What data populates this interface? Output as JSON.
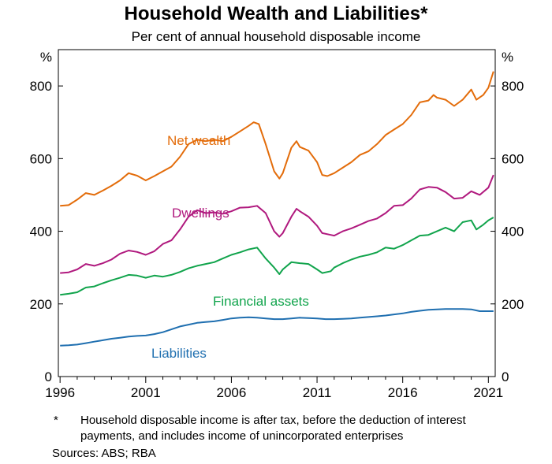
{
  "title": "Household Wealth and Liabilities*",
  "subtitle": "Per cent of annual household disposable income",
  "footnote_marker": "*",
  "footnote": "Household disposable income is after tax, before the deduction of interest payments, and includes income of unincorporated enterprises",
  "sources": "Sources: ABS; RBA",
  "chart_data": {
    "type": "line",
    "y_unit": "%",
    "ylim": [
      0,
      900
    ],
    "xlim": [
      1995.9,
      2021.4
    ],
    "y_ticks": [
      0,
      200,
      400,
      600,
      800
    ],
    "x_ticks": [
      1996,
      2001,
      2006,
      2011,
      2016,
      2021
    ],
    "grid": false,
    "legend": "inline labels",
    "series": [
      {
        "name": "Net wealth",
        "color": "#E36C0A",
        "points": [
          [
            1996,
            470
          ],
          [
            1996.5,
            472
          ],
          [
            1997,
            487
          ],
          [
            1997.5,
            505
          ],
          [
            1998,
            500
          ],
          [
            1998.5,
            512
          ],
          [
            1999,
            525
          ],
          [
            1999.5,
            540
          ],
          [
            2000,
            560
          ],
          [
            2000.5,
            553
          ],
          [
            2001,
            540
          ],
          [
            2001.5,
            552
          ],
          [
            2002,
            565
          ],
          [
            2002.5,
            578
          ],
          [
            2003,
            605
          ],
          [
            2003.5,
            640
          ],
          [
            2004,
            652
          ],
          [
            2004.5,
            648
          ],
          [
            2005,
            652
          ],
          [
            2005.5,
            648
          ],
          [
            2006,
            660
          ],
          [
            2006.5,
            675
          ],
          [
            2007,
            690
          ],
          [
            2007.3,
            700
          ],
          [
            2007.6,
            695
          ],
          [
            2008,
            640
          ],
          [
            2008.5,
            565
          ],
          [
            2008.8,
            545
          ],
          [
            2009,
            560
          ],
          [
            2009.5,
            630
          ],
          [
            2009.8,
            648
          ],
          [
            2010,
            632
          ],
          [
            2010.5,
            622
          ],
          [
            2011,
            590
          ],
          [
            2011.3,
            555
          ],
          [
            2011.6,
            552
          ],
          [
            2012,
            560
          ],
          [
            2012.5,
            575
          ],
          [
            2013,
            590
          ],
          [
            2013.5,
            610
          ],
          [
            2014,
            620
          ],
          [
            2014.5,
            640
          ],
          [
            2015,
            665
          ],
          [
            2015.5,
            680
          ],
          [
            2016,
            695
          ],
          [
            2016.5,
            720
          ],
          [
            2017,
            755
          ],
          [
            2017.5,
            760
          ],
          [
            2017.8,
            775
          ],
          [
            2018,
            768
          ],
          [
            2018.5,
            762
          ],
          [
            2019,
            745
          ],
          [
            2019.5,
            762
          ],
          [
            2020,
            790
          ],
          [
            2020.3,
            762
          ],
          [
            2020.7,
            775
          ],
          [
            2021,
            795
          ],
          [
            2021.3,
            840
          ]
        ]
      },
      {
        "name": "Dwellings",
        "color": "#B0197E",
        "points": [
          [
            1996,
            285
          ],
          [
            1996.5,
            287
          ],
          [
            1997,
            295
          ],
          [
            1997.5,
            310
          ],
          [
            1998,
            305
          ],
          [
            1998.5,
            312
          ],
          [
            1999,
            322
          ],
          [
            1999.5,
            338
          ],
          [
            2000,
            347
          ],
          [
            2000.5,
            343
          ],
          [
            2001,
            335
          ],
          [
            2001.5,
            345
          ],
          [
            2002,
            365
          ],
          [
            2002.5,
            375
          ],
          [
            2003,
            405
          ],
          [
            2003.5,
            440
          ],
          [
            2004,
            458
          ],
          [
            2004.5,
            450
          ],
          [
            2005,
            452
          ],
          [
            2005.5,
            448
          ],
          [
            2006,
            455
          ],
          [
            2006.5,
            465
          ],
          [
            2007,
            466
          ],
          [
            2007.5,
            470
          ],
          [
            2008,
            450
          ],
          [
            2008.5,
            400
          ],
          [
            2008.8,
            385
          ],
          [
            2009,
            395
          ],
          [
            2009.5,
            440
          ],
          [
            2009.8,
            462
          ],
          [
            2010,
            455
          ],
          [
            2010.5,
            440
          ],
          [
            2011,
            415
          ],
          [
            2011.3,
            395
          ],
          [
            2011.8,
            390
          ],
          [
            2012,
            388
          ],
          [
            2012.5,
            400
          ],
          [
            2013,
            408
          ],
          [
            2013.5,
            418
          ],
          [
            2014,
            428
          ],
          [
            2014.5,
            435
          ],
          [
            2015,
            450
          ],
          [
            2015.5,
            470
          ],
          [
            2016,
            472
          ],
          [
            2016.5,
            490
          ],
          [
            2017,
            515
          ],
          [
            2017.5,
            522
          ],
          [
            2018,
            520
          ],
          [
            2018.5,
            508
          ],
          [
            2019,
            490
          ],
          [
            2019.5,
            492
          ],
          [
            2020,
            510
          ],
          [
            2020.5,
            500
          ],
          [
            2021,
            520
          ],
          [
            2021.3,
            555
          ]
        ]
      },
      {
        "name": "Financial assets",
        "color": "#11A44C",
        "points": [
          [
            1996,
            225
          ],
          [
            1996.5,
            228
          ],
          [
            1997,
            232
          ],
          [
            1997.5,
            245
          ],
          [
            1998,
            248
          ],
          [
            1998.5,
            257
          ],
          [
            1999,
            265
          ],
          [
            1999.5,
            272
          ],
          [
            2000,
            280
          ],
          [
            2000.5,
            278
          ],
          [
            2001,
            272
          ],
          [
            2001.5,
            278
          ],
          [
            2002,
            275
          ],
          [
            2002.5,
            280
          ],
          [
            2003,
            288
          ],
          [
            2003.5,
            298
          ],
          [
            2004,
            305
          ],
          [
            2004.5,
            310
          ],
          [
            2005,
            315
          ],
          [
            2005.5,
            325
          ],
          [
            2006,
            335
          ],
          [
            2006.5,
            342
          ],
          [
            2007,
            350
          ],
          [
            2007.5,
            355
          ],
          [
            2008,
            325
          ],
          [
            2008.5,
            300
          ],
          [
            2008.8,
            282
          ],
          [
            2009,
            295
          ],
          [
            2009.5,
            315
          ],
          [
            2010,
            312
          ],
          [
            2010.5,
            310
          ],
          [
            2011,
            295
          ],
          [
            2011.3,
            285
          ],
          [
            2011.8,
            290
          ],
          [
            2012,
            300
          ],
          [
            2012.5,
            312
          ],
          [
            2013,
            322
          ],
          [
            2013.5,
            330
          ],
          [
            2014,
            335
          ],
          [
            2014.5,
            342
          ],
          [
            2015,
            355
          ],
          [
            2015.5,
            352
          ],
          [
            2016,
            362
          ],
          [
            2016.5,
            375
          ],
          [
            2017,
            388
          ],
          [
            2017.5,
            390
          ],
          [
            2018,
            400
          ],
          [
            2018.5,
            410
          ],
          [
            2019,
            400
          ],
          [
            2019.5,
            425
          ],
          [
            2020,
            430
          ],
          [
            2020.3,
            405
          ],
          [
            2020.7,
            418
          ],
          [
            2021,
            430
          ],
          [
            2021.3,
            438
          ]
        ]
      },
      {
        "name": "Liabilities",
        "color": "#1F6FB0",
        "points": [
          [
            1996,
            85
          ],
          [
            1996.5,
            86
          ],
          [
            1997,
            88
          ],
          [
            1997.5,
            92
          ],
          [
            1998,
            96
          ],
          [
            1998.5,
            100
          ],
          [
            1999,
            104
          ],
          [
            1999.5,
            107
          ],
          [
            2000,
            110
          ],
          [
            2000.5,
            112
          ],
          [
            2001,
            113
          ],
          [
            2001.5,
            117
          ],
          [
            2002,
            122
          ],
          [
            2002.5,
            130
          ],
          [
            2003,
            138
          ],
          [
            2003.5,
            143
          ],
          [
            2004,
            148
          ],
          [
            2004.5,
            150
          ],
          [
            2005,
            152
          ],
          [
            2005.5,
            156
          ],
          [
            2006,
            160
          ],
          [
            2006.5,
            162
          ],
          [
            2007,
            163
          ],
          [
            2007.5,
            162
          ],
          [
            2008,
            160
          ],
          [
            2008.5,
            158
          ],
          [
            2009,
            158
          ],
          [
            2009.5,
            160
          ],
          [
            2010,
            162
          ],
          [
            2010.5,
            161
          ],
          [
            2011,
            160
          ],
          [
            2011.5,
            158
          ],
          [
            2012,
            158
          ],
          [
            2012.5,
            159
          ],
          [
            2013,
            160
          ],
          [
            2013.5,
            162
          ],
          [
            2014,
            164
          ],
          [
            2014.5,
            166
          ],
          [
            2015,
            168
          ],
          [
            2015.5,
            171
          ],
          [
            2016,
            174
          ],
          [
            2016.5,
            178
          ],
          [
            2017,
            181
          ],
          [
            2017.5,
            184
          ],
          [
            2018,
            185
          ],
          [
            2018.5,
            186
          ],
          [
            2019,
            186
          ],
          [
            2019.5,
            186
          ],
          [
            2020,
            185
          ],
          [
            2020.5,
            180
          ],
          [
            2021,
            180
          ],
          [
            2021.3,
            180
          ]
        ]
      }
    ]
  }
}
